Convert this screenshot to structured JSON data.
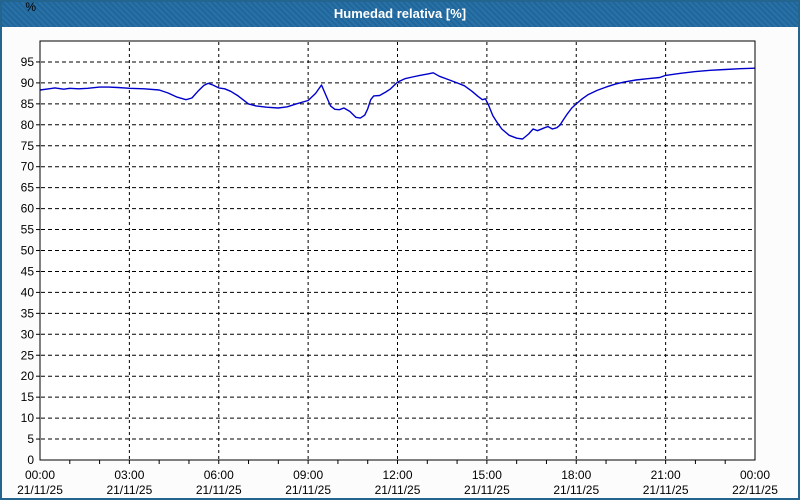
{
  "window": {
    "title": "Humedad relativa [%]"
  },
  "colors": {
    "titlebar_bg": "#1F69A0",
    "window_border": "#24658F",
    "page_bg": "#FCFCFC",
    "plot_bg": "#FFFFFF",
    "grid": "#000000",
    "axis": "#000000",
    "series_line": "#0000CC",
    "title_text": "#FFFFFF",
    "label_text": "#000000"
  },
  "chart_data": {
    "type": "line",
    "title": "Humedad relativa [%]",
    "ylabel": "%",
    "xlabel": "",
    "ylim": [
      0,
      100
    ],
    "xlim_hours": [
      0,
      24
    ],
    "grid": "dashed",
    "legend": "none",
    "y_ticks": [
      0,
      5,
      10,
      15,
      20,
      25,
      30,
      35,
      40,
      45,
      50,
      55,
      60,
      65,
      70,
      75,
      80,
      85,
      90,
      95
    ],
    "x_major_ticks": [
      {
        "hour": 0,
        "time": "00:00",
        "date": "21/11/25"
      },
      {
        "hour": 3,
        "time": "03:00",
        "date": "21/11/25"
      },
      {
        "hour": 6,
        "time": "06:00",
        "date": "21/11/25"
      },
      {
        "hour": 9,
        "time": "09:00",
        "date": "21/11/25"
      },
      {
        "hour": 12,
        "time": "12:00",
        "date": "21/11/25"
      },
      {
        "hour": 15,
        "time": "15:00",
        "date": "21/11/25"
      },
      {
        "hour": 18,
        "time": "18:00",
        "date": "21/11/25"
      },
      {
        "hour": 21,
        "time": "21:00",
        "date": "21/11/25"
      },
      {
        "hour": 24,
        "time": "00:00",
        "date": "22/11/25"
      }
    ],
    "x_minor_interval_hours": 1,
    "series": [
      {
        "name": "Humedad relativa",
        "color": "#0000CC",
        "points": [
          [
            0.0,
            88.3
          ],
          [
            0.3,
            88.6
          ],
          [
            0.5,
            88.8
          ],
          [
            0.8,
            88.5
          ],
          [
            1.0,
            88.7
          ],
          [
            1.3,
            88.6
          ],
          [
            1.6,
            88.7
          ],
          [
            2.0,
            89.0
          ],
          [
            2.3,
            89.0
          ],
          [
            2.6,
            88.9
          ],
          [
            3.0,
            88.7
          ],
          [
            3.5,
            88.6
          ],
          [
            4.0,
            88.3
          ],
          [
            4.3,
            87.6
          ],
          [
            4.6,
            86.6
          ],
          [
            4.9,
            86.0
          ],
          [
            5.1,
            86.4
          ],
          [
            5.3,
            88.0
          ],
          [
            5.5,
            89.4
          ],
          [
            5.65,
            89.9
          ],
          [
            5.8,
            89.5
          ],
          [
            6.0,
            88.8
          ],
          [
            6.2,
            88.6
          ],
          [
            6.4,
            88.0
          ],
          [
            6.65,
            86.9
          ],
          [
            7.0,
            85.0
          ],
          [
            7.25,
            84.5
          ],
          [
            7.6,
            84.2
          ],
          [
            8.0,
            84.0
          ],
          [
            8.3,
            84.3
          ],
          [
            8.6,
            85.0
          ],
          [
            9.0,
            85.8
          ],
          [
            9.25,
            87.5
          ],
          [
            9.45,
            89.5
          ],
          [
            9.6,
            87.0
          ],
          [
            9.75,
            84.5
          ],
          [
            9.9,
            83.7
          ],
          [
            10.05,
            83.6
          ],
          [
            10.2,
            84.0
          ],
          [
            10.4,
            83.2
          ],
          [
            10.6,
            81.8
          ],
          [
            10.75,
            81.6
          ],
          [
            10.9,
            82.3
          ],
          [
            11.0,
            83.8
          ],
          [
            11.1,
            86.0
          ],
          [
            11.2,
            86.9
          ],
          [
            11.4,
            87.0
          ],
          [
            11.6,
            87.8
          ],
          [
            11.75,
            88.5
          ],
          [
            12.0,
            90.2
          ],
          [
            12.25,
            91.0
          ],
          [
            12.5,
            91.4
          ],
          [
            12.75,
            91.8
          ],
          [
            13.0,
            92.1
          ],
          [
            13.2,
            92.4
          ],
          [
            13.4,
            91.6
          ],
          [
            13.7,
            90.8
          ],
          [
            14.0,
            90.0
          ],
          [
            14.25,
            89.3
          ],
          [
            14.5,
            88.0
          ],
          [
            14.7,
            86.8
          ],
          [
            14.85,
            86.0
          ],
          [
            14.95,
            86.2
          ],
          [
            15.05,
            84.8
          ],
          [
            15.2,
            82.2
          ],
          [
            15.35,
            80.5
          ],
          [
            15.5,
            79.0
          ],
          [
            15.75,
            77.5
          ],
          [
            16.0,
            76.8
          ],
          [
            16.2,
            76.6
          ],
          [
            16.4,
            77.8
          ],
          [
            16.55,
            79.0
          ],
          [
            16.7,
            78.6
          ],
          [
            16.9,
            79.2
          ],
          [
            17.05,
            79.6
          ],
          [
            17.2,
            79.0
          ],
          [
            17.35,
            79.3
          ],
          [
            17.45,
            79.9
          ],
          [
            17.55,
            81.0
          ],
          [
            17.7,
            82.6
          ],
          [
            17.85,
            84.0
          ],
          [
            18.0,
            85.0
          ],
          [
            18.2,
            86.2
          ],
          [
            18.4,
            87.2
          ],
          [
            18.7,
            88.2
          ],
          [
            19.0,
            89.0
          ],
          [
            19.3,
            89.7
          ],
          [
            19.6,
            90.2
          ],
          [
            20.0,
            90.7
          ],
          [
            20.4,
            91.0
          ],
          [
            20.8,
            91.3
          ],
          [
            21.0,
            91.8
          ],
          [
            21.5,
            92.3
          ],
          [
            22.0,
            92.7
          ],
          [
            22.5,
            93.0
          ],
          [
            23.0,
            93.2
          ],
          [
            23.5,
            93.4
          ],
          [
            24.0,
            93.5
          ]
        ]
      }
    ]
  }
}
